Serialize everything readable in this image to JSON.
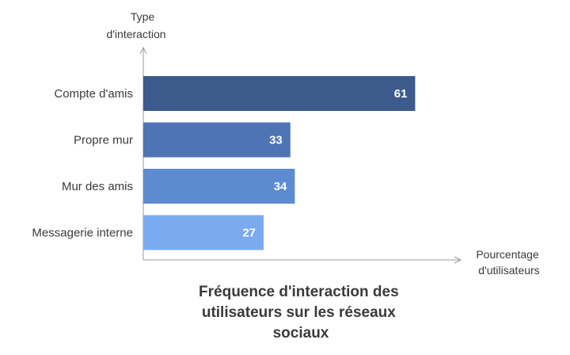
{
  "chart_data": {
    "type": "bar",
    "orientation": "horizontal",
    "categories": [
      "Compte d'amis",
      "Propre mur",
      "Mur des amis",
      "Messagerie interne"
    ],
    "values": [
      61,
      33,
      34,
      27
    ],
    "data_labels": [
      "61",
      "33",
      "34",
      "27"
    ],
    "bar_colors": [
      "#3d5a8c",
      "#4e74b6",
      "#5d8bd2",
      "#7aaaf0"
    ],
    "ylabel": [
      "Type",
      "d'interaction"
    ],
    "xlabel": [
      "Pourcentage",
      "d'utilisateurs"
    ],
    "title": [
      "Fréquence d'interaction des",
      "utilisateurs sur les réseaux",
      "sociaux"
    ],
    "xlim": [
      0,
      100
    ],
    "grid": false,
    "legend": "none"
  }
}
